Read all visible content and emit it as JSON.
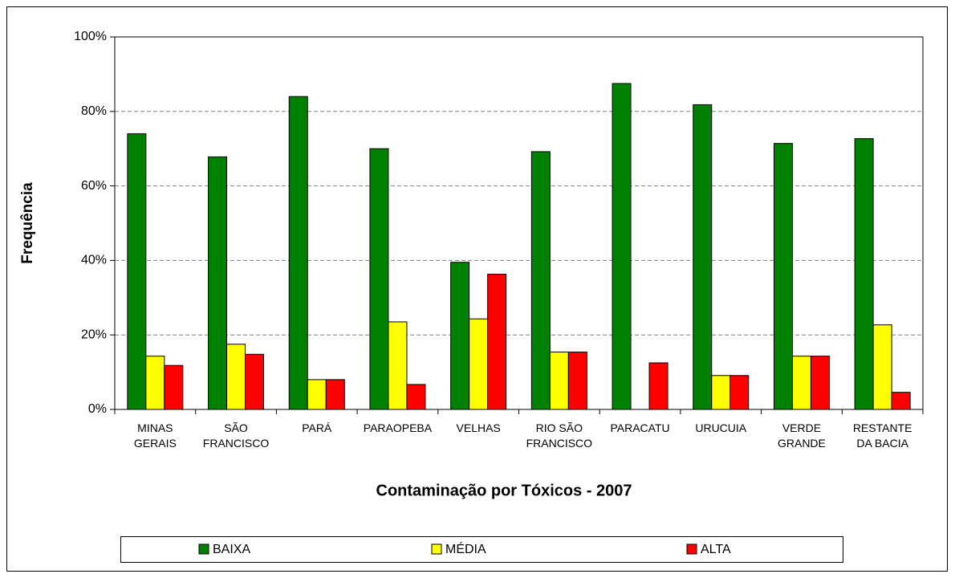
{
  "chart_data": {
    "type": "bar",
    "title": "Contaminação por Tóxicos - 2007",
    "y_label": "Frequência",
    "categories": [
      "MINAS\nGERAIS",
      "SÃO\nFRANCISCO",
      "PARÁ",
      "PARAOPEBA",
      "VELHAS",
      "RIO SÃO\nFRANCISCO",
      "PARACATU",
      "URUCUIA",
      "VERDE\nGRANDE",
      "RESTANTE\nDA BACIA"
    ],
    "series": [
      {
        "name": "BAIXA",
        "color": "#008000",
        "values": [
          74,
          67.8,
          84,
          70,
          39.5,
          69.2,
          87.5,
          81.8,
          71.4,
          72.7
        ]
      },
      {
        "name": "MÉDIA",
        "color": "#ffff00",
        "values": [
          14.3,
          17.5,
          8,
          23.5,
          24.3,
          15.4,
          0,
          9.1,
          14.3,
          22.7
        ]
      },
      {
        "name": "ALTA",
        "color": "#ff0000",
        "values": [
          11.8,
          14.8,
          8,
          6.7,
          36.3,
          15.4,
          12.5,
          9.1,
          14.3,
          4.6
        ]
      }
    ],
    "ylim": [
      0,
      100
    ],
    "yticks": [
      {
        "value": 0,
        "label": "0%"
      },
      {
        "value": 20,
        "label": "20%"
      },
      {
        "value": 40,
        "label": "40%"
      },
      {
        "value": 60,
        "label": "60%"
      },
      {
        "value": 80,
        "label": "80%"
      },
      {
        "value": 100,
        "label": "100%"
      }
    ],
    "grid": true,
    "legend": "bottom"
  }
}
